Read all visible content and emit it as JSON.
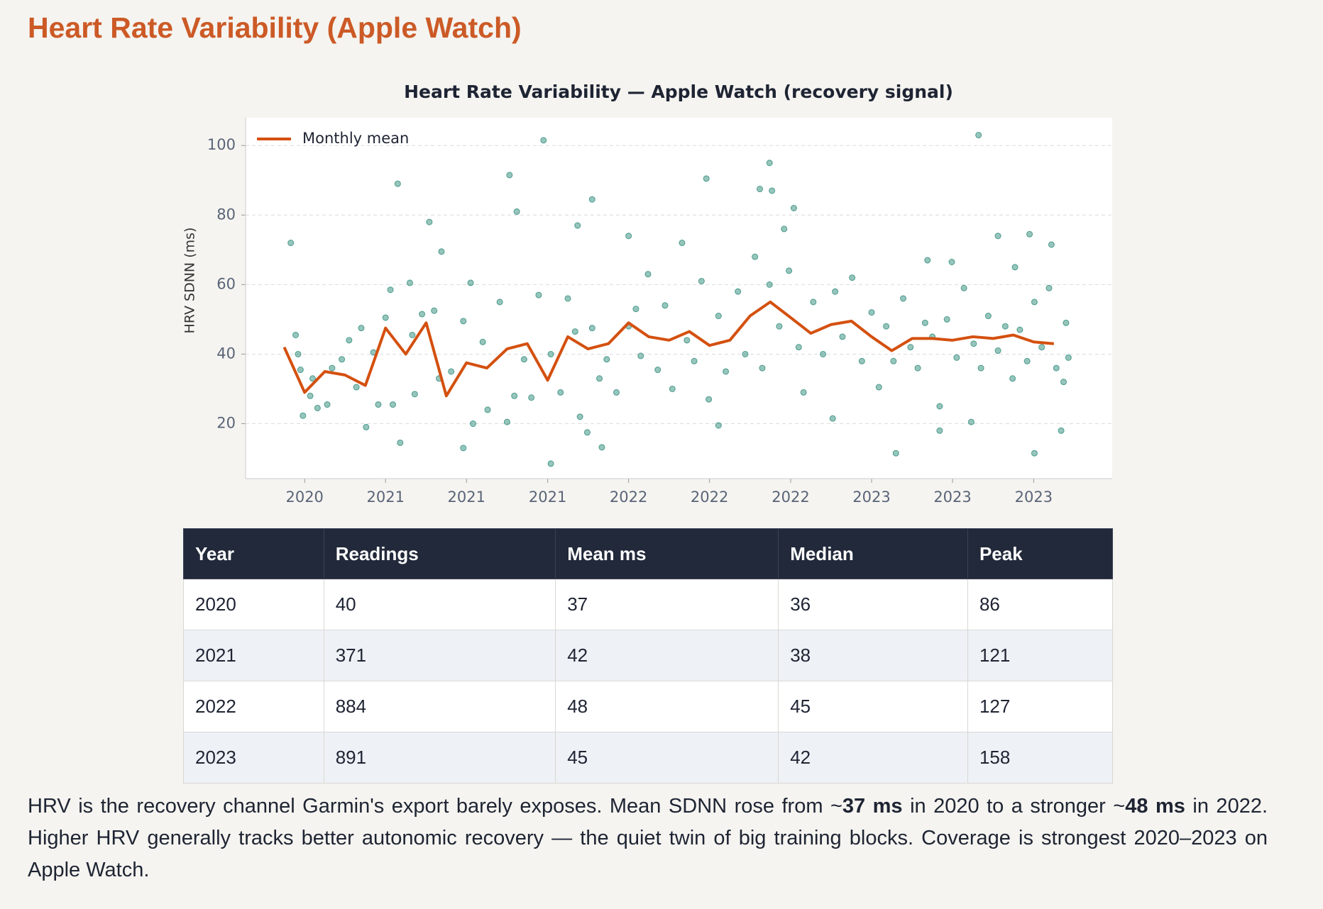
{
  "title": "Heart Rate Variability (Apple Watch)",
  "chart_data": {
    "type": "scatter",
    "title": "Heart Rate Variability — Apple Watch (recovery signal)",
    "ylabel": "HRV SDNN (ms)",
    "xlim": [
      2020.424,
      2023.99
    ],
    "ylim": [
      4.2,
      108
    ],
    "xticks": [
      {
        "value": 2020.667,
        "label": "2020"
      },
      {
        "value": 2021,
        "label": "2021"
      },
      {
        "value": 2021.333,
        "label": "2021"
      },
      {
        "value": 2021.667,
        "label": "2021"
      },
      {
        "value": 2022,
        "label": "2022"
      },
      {
        "value": 2022.333,
        "label": "2022"
      },
      {
        "value": 2022.667,
        "label": "2022"
      },
      {
        "value": 2023,
        "label": "2023"
      },
      {
        "value": 2023.333,
        "label": "2023"
      },
      {
        "value": 2023.667,
        "label": "2023"
      }
    ],
    "yticks": [
      20,
      40,
      60,
      80,
      100
    ],
    "grid": true,
    "legend": "upper left",
    "series": [
      {
        "type": "scatter",
        "color": "#2e8b7a",
        "x": [
          2020.61,
          2021.65,
          2021.05,
          2023.44,
          2022.58,
          2022.32,
          2021.51,
          2021.54,
          2021.85,
          2021.18,
          2021.23,
          2021.79,
          2022.68,
          2022.64,
          2022.54,
          2022.59,
          2022.0,
          2023.52,
          2023.65,
          2023.1,
          2023.67,
          2021.68,
          2021.32,
          2021.06,
          2023.78,
          2023.28,
          2023.41,
          2022.37,
          2021.83,
          2021.89,
          2020.92,
          2020.66,
          2022.84,
          2023.74,
          2023.59,
          2023.33,
          2023.23,
          2020.63,
          2020.64,
          2020.65,
          2020.69,
          2020.72,
          2020.7,
          2020.76,
          2020.78,
          2020.82,
          2020.85,
          2020.88,
          2020.9,
          2020.95,
          2020.97,
          2021.0,
          2021.02,
          2021.03,
          2021.1,
          2021.11,
          2021.12,
          2021.15,
          2021.2,
          2021.22,
          2021.27,
          2021.32,
          2021.35,
          2021.36,
          2021.4,
          2021.42,
          2021.47,
          2021.5,
          2021.53,
          2021.57,
          2021.6,
          2021.63,
          2021.68,
          2021.72,
          2021.75,
          2021.78,
          2021.8,
          2021.85,
          2021.88,
          2021.91,
          2021.95,
          2022.0,
          2022.03,
          2022.05,
          2022.08,
          2022.12,
          2022.15,
          2022.18,
          2022.22,
          2022.24,
          2022.27,
          2022.3,
          2022.33,
          2022.37,
          2022.4,
          2022.45,
          2022.48,
          2022.52,
          2022.55,
          2022.58,
          2022.62,
          2022.66,
          2022.7,
          2022.72,
          2022.76,
          2022.8,
          2022.85,
          2022.88,
          2022.92,
          2022.96,
          2023.0,
          2023.03,
          2023.06,
          2023.09,
          2023.13,
          2023.16,
          2023.19,
          2023.22,
          2023.25,
          2023.28,
          2023.31,
          2023.35,
          2023.38,
          2023.42,
          2023.45,
          2023.48,
          2023.52,
          2023.55,
          2023.58,
          2023.61,
          2023.64,
          2023.67,
          2023.7,
          2023.73,
          2023.76,
          2023.8,
          2023.81,
          2023.79
        ],
        "values": [
          72,
          101.5,
          89,
          103,
          95,
          90.5,
          91.5,
          81,
          84.5,
          78,
          69.5,
          77,
          82,
          76,
          87.5,
          87,
          74,
          74,
          74.5,
          11.5,
          11.5,
          8.5,
          13,
          14.5,
          18,
          18,
          20.5,
          19.5,
          17.5,
          13.2,
          19,
          22.3,
          21.5,
          71.5,
          65,
          66.5,
          67,
          45.5,
          40,
          35.5,
          28,
          24.5,
          33,
          25.5,
          36,
          38.5,
          44,
          30.5,
          47.5,
          40.5,
          25.5,
          50.5,
          58.5,
          25.5,
          60.5,
          45.5,
          28.5,
          51.5,
          52.5,
          33,
          35,
          49.5,
          60.5,
          20,
          43.5,
          24,
          55,
          20.5,
          28,
          38.5,
          27.5,
          57,
          40,
          29,
          56,
          46.5,
          22,
          47.5,
          33,
          38.5,
          29,
          48,
          53,
          39.5,
          63,
          35.5,
          54,
          30,
          72,
          44,
          38,
          61,
          27,
          51,
          35,
          58,
          40,
          68,
          36,
          60,
          48,
          64,
          42,
          29,
          55,
          40,
          58,
          45,
          62,
          38,
          52,
          30.5,
          48,
          38,
          56,
          42,
          36,
          49,
          45,
          25,
          50,
          39,
          59,
          43,
          36,
          51,
          41,
          48,
          33,
          47,
          38,
          55,
          42,
          59,
          36,
          49,
          39,
          32
        ]
      },
      {
        "type": "line",
        "name": "Monthly mean",
        "color": "#d4500f",
        "x": [
          2020.583,
          2020.667,
          2020.75,
          2020.833,
          2020.917,
          2021,
          2021.083,
          2021.167,
          2021.25,
          2021.333,
          2021.417,
          2021.5,
          2021.583,
          2021.667,
          2021.75,
          2021.833,
          2021.917,
          2022,
          2022.083,
          2022.167,
          2022.25,
          2022.333,
          2022.417,
          2022.5,
          2022.583,
          2022.667,
          2022.75,
          2022.833,
          2022.917,
          2023,
          2023.083,
          2023.167,
          2023.25,
          2023.333,
          2023.417,
          2023.5,
          2023.583,
          2023.667,
          2023.75
        ],
        "values": [
          42,
          29,
          35,
          34,
          31,
          47.5,
          40,
          49,
          28,
          37.5,
          36,
          41.5,
          43,
          32.5,
          45,
          41.5,
          43,
          49,
          45,
          44,
          46.5,
          42.5,
          44,
          51,
          55,
          50.5,
          46,
          48.5,
          49.5,
          45,
          41,
          44.5,
          44.5,
          44,
          45,
          44.5,
          45.5,
          43.5,
          43
        ]
      }
    ]
  },
  "table": {
    "columns": [
      "Year",
      "Readings",
      "Mean ms",
      "Median",
      "Peak"
    ],
    "rows": [
      [
        2020,
        40,
        37,
        36,
        86
      ],
      [
        2021,
        371,
        42,
        38,
        121
      ],
      [
        2022,
        884,
        48,
        45,
        127
      ],
      [
        2023,
        891,
        45,
        42,
        158
      ]
    ]
  },
  "paragraph": [
    {
      "text": "HRV is the recovery channel Garmin's export barely exposes. Mean SDNN rose from ~"
    },
    {
      "text": "37 ms",
      "bold": true
    },
    {
      "text": " in 2020 to a stronger ~"
    },
    {
      "text": "48 ms",
      "bold": true
    },
    {
      "text": " in 2022. Higher HRV generally tracks better autonomic recovery — the quiet twin of big training blocks. Coverage is strongest 2020–2023 on Apple Watch."
    }
  ]
}
